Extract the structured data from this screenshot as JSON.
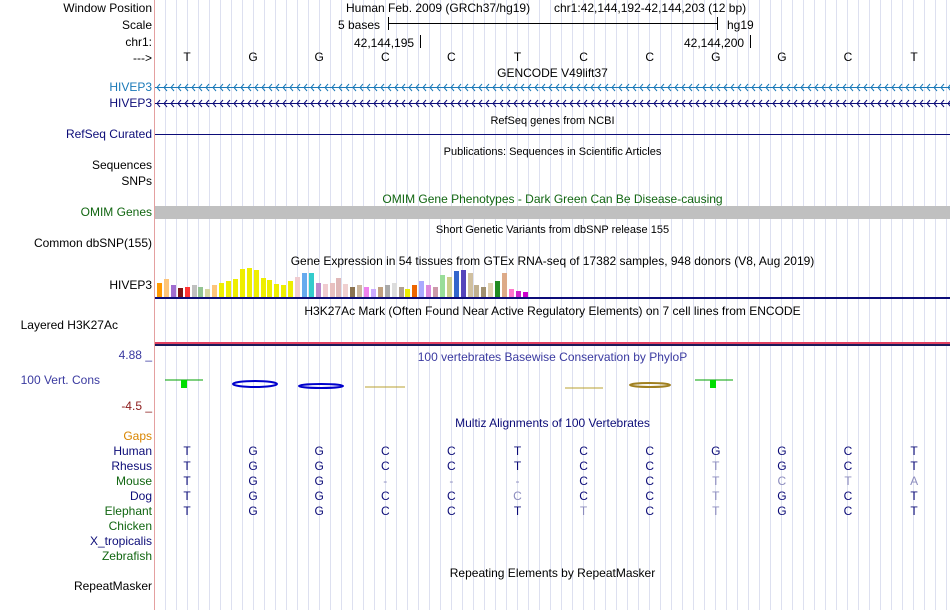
{
  "colors": {
    "gencode": "#1a79b8",
    "navy": "#0c0c78",
    "omim_green": "#116611",
    "omim_bar": "#c0c0c0",
    "gaps": "#d98500",
    "phylop": "#3a3aa0",
    "neg": "#8b1a1a",
    "h3k27_red": "#e04060",
    "human": "#0c0c78",
    "other": "#0c4c0c"
  },
  "labels": {
    "window_position": "Window Position",
    "scale": "Scale",
    "chr": "chr1:",
    "strand": "--->",
    "gencode1": "HIVEP3",
    "gencode2": "HIVEP3",
    "refseq": "RefSeq Curated",
    "sequences": "Sequences",
    "snps": "SNPs",
    "omim": "OMIM Genes",
    "common_snp": "Common dbSNP(155)",
    "gtex": "HIVEP3",
    "h3k27ac": "Layered H3K27Ac",
    "cons_max": "4.88 _",
    "cons": "100 Vert. Cons",
    "cons_min": "-4.5 _",
    "gaps": "Gaps"
  },
  "header": {
    "assembly": "Human Feb. 2009 (GRCh37/hg19)",
    "position": "chr1:42,144,192-42,144,203 (12 bp)",
    "scale_bases": "5 bases",
    "scale_db": "hg19",
    "pos1": "42,144,195",
    "pos2": "42,144,200"
  },
  "sequence": [
    "T",
    "G",
    "G",
    "C",
    "C",
    "T",
    "C",
    "C",
    "G",
    "G",
    "C",
    "T"
  ],
  "tracks": {
    "gencode": "GENCODE V49lift37",
    "refseq": "RefSeq genes from NCBI",
    "pubs": "Publications: Sequences in Scientific Articles",
    "omim": "OMIM Gene Phenotypes - Dark Green Can Be Disease-causing",
    "snp": "Short Genetic Variants from dbSNP release 155",
    "gtex": "Gene Expression in 54 tissues from GTEx RNA-seq of 17382 samples, 948 donors (V8, Aug 2019)",
    "h3k27ac": "H3K27Ac Mark (Often Found Near Active Regulatory Elements) on 7 cell lines from ENCODE",
    "phylop": "100 vertebrates Basewise Conservation by PhyloP",
    "multiz": "Multiz Alignments of 100 Vertebrates",
    "repeatmasker": "Repeating Elements by RepeatMasker",
    "repeatmasker_label": "RepeatMasker"
  },
  "gtex": {
    "values": [
      14,
      18,
      12,
      9,
      10,
      12,
      10,
      8,
      12,
      14,
      16,
      18,
      28,
      29,
      27,
      19,
      17,
      13,
      12,
      16,
      20,
      24,
      24,
      14,
      13,
      14,
      19,
      13,
      10,
      12,
      10,
      8,
      10,
      12,
      14,
      10,
      8,
      12,
      16,
      12,
      10,
      22,
      20,
      26,
      27,
      24,
      12,
      10,
      14,
      16,
      24,
      8,
      6,
      5
    ],
    "colors": [
      "#ff9900",
      "#fdc57a",
      "#a06ed0",
      "#801616",
      "#ff3333",
      "#c0c0c0",
      "#93c493",
      "#d6d6a0",
      "#fdc57a",
      "#eeee00",
      "#eeee00",
      "#eeee00",
      "#eeee00",
      "#eeee00",
      "#eeee00",
      "#eeee00",
      "#eeee00",
      "#eeee00",
      "#eeee00",
      "#eeee00",
      "#f0ccd0",
      "#66aaee",
      "#33cccc",
      "#bb88cc",
      "#f0ccd0",
      "#e8c0c0",
      "#e0b8b8",
      "#f0d0d0",
      "#8b7352",
      "#cdb79e",
      "#ee82ee",
      "#ccaaff",
      "#c0a080",
      "#aaaaaa",
      "#dddddd",
      "#b0a090",
      "#eeee00",
      "#ee6600",
      "#aaaaff",
      "#dd88dd",
      "#cc99aa",
      "#99dd99",
      "#cccc88",
      "#3366cc",
      "#5544bb",
      "#d0c0a0",
      "#c0b090",
      "#a09070",
      "#e0d0b0",
      "#228b22",
      "#ddaa88",
      "#ff77cc",
      "#cc22cc",
      "#cc00cc"
    ]
  },
  "species": [
    {
      "name": "Human",
      "color": "#0c0c78",
      "bases": [
        "T",
        "G",
        "G",
        "C",
        "C",
        "T",
        "C",
        "C",
        "G",
        "G",
        "C",
        "T"
      ]
    },
    {
      "name": "Rhesus",
      "color": "#0c0c78",
      "bases": [
        "T",
        "G",
        "G",
        "C",
        "C",
        "T",
        "C",
        "C",
        "T",
        "G",
        "C",
        "T"
      ]
    },
    {
      "name": "Mouse",
      "color": "#116611",
      "bases": [
        "T",
        "G",
        "G",
        "-",
        "-",
        "-",
        "C",
        "C",
        "T",
        "C",
        "T",
        "A"
      ]
    },
    {
      "name": "Dog",
      "color": "#0c0c78",
      "bases": [
        "T",
        "G",
        "G",
        "C",
        "C",
        "C",
        "C",
        "C",
        "T",
        "G",
        "C",
        "T"
      ]
    },
    {
      "name": "Elephant",
      "color": "#116611",
      "bases": [
        "T",
        "G",
        "G",
        "C",
        "C",
        "T",
        "T",
        "C",
        "T",
        "G",
        "C",
        "T"
      ]
    },
    {
      "name": "Chicken",
      "color": "#116611",
      "bases": []
    },
    {
      "name": "X_tropicalis",
      "color": "#0c0c78",
      "bases": []
    },
    {
      "name": "Zebrafish",
      "color": "#116611",
      "bases": []
    }
  ]
}
